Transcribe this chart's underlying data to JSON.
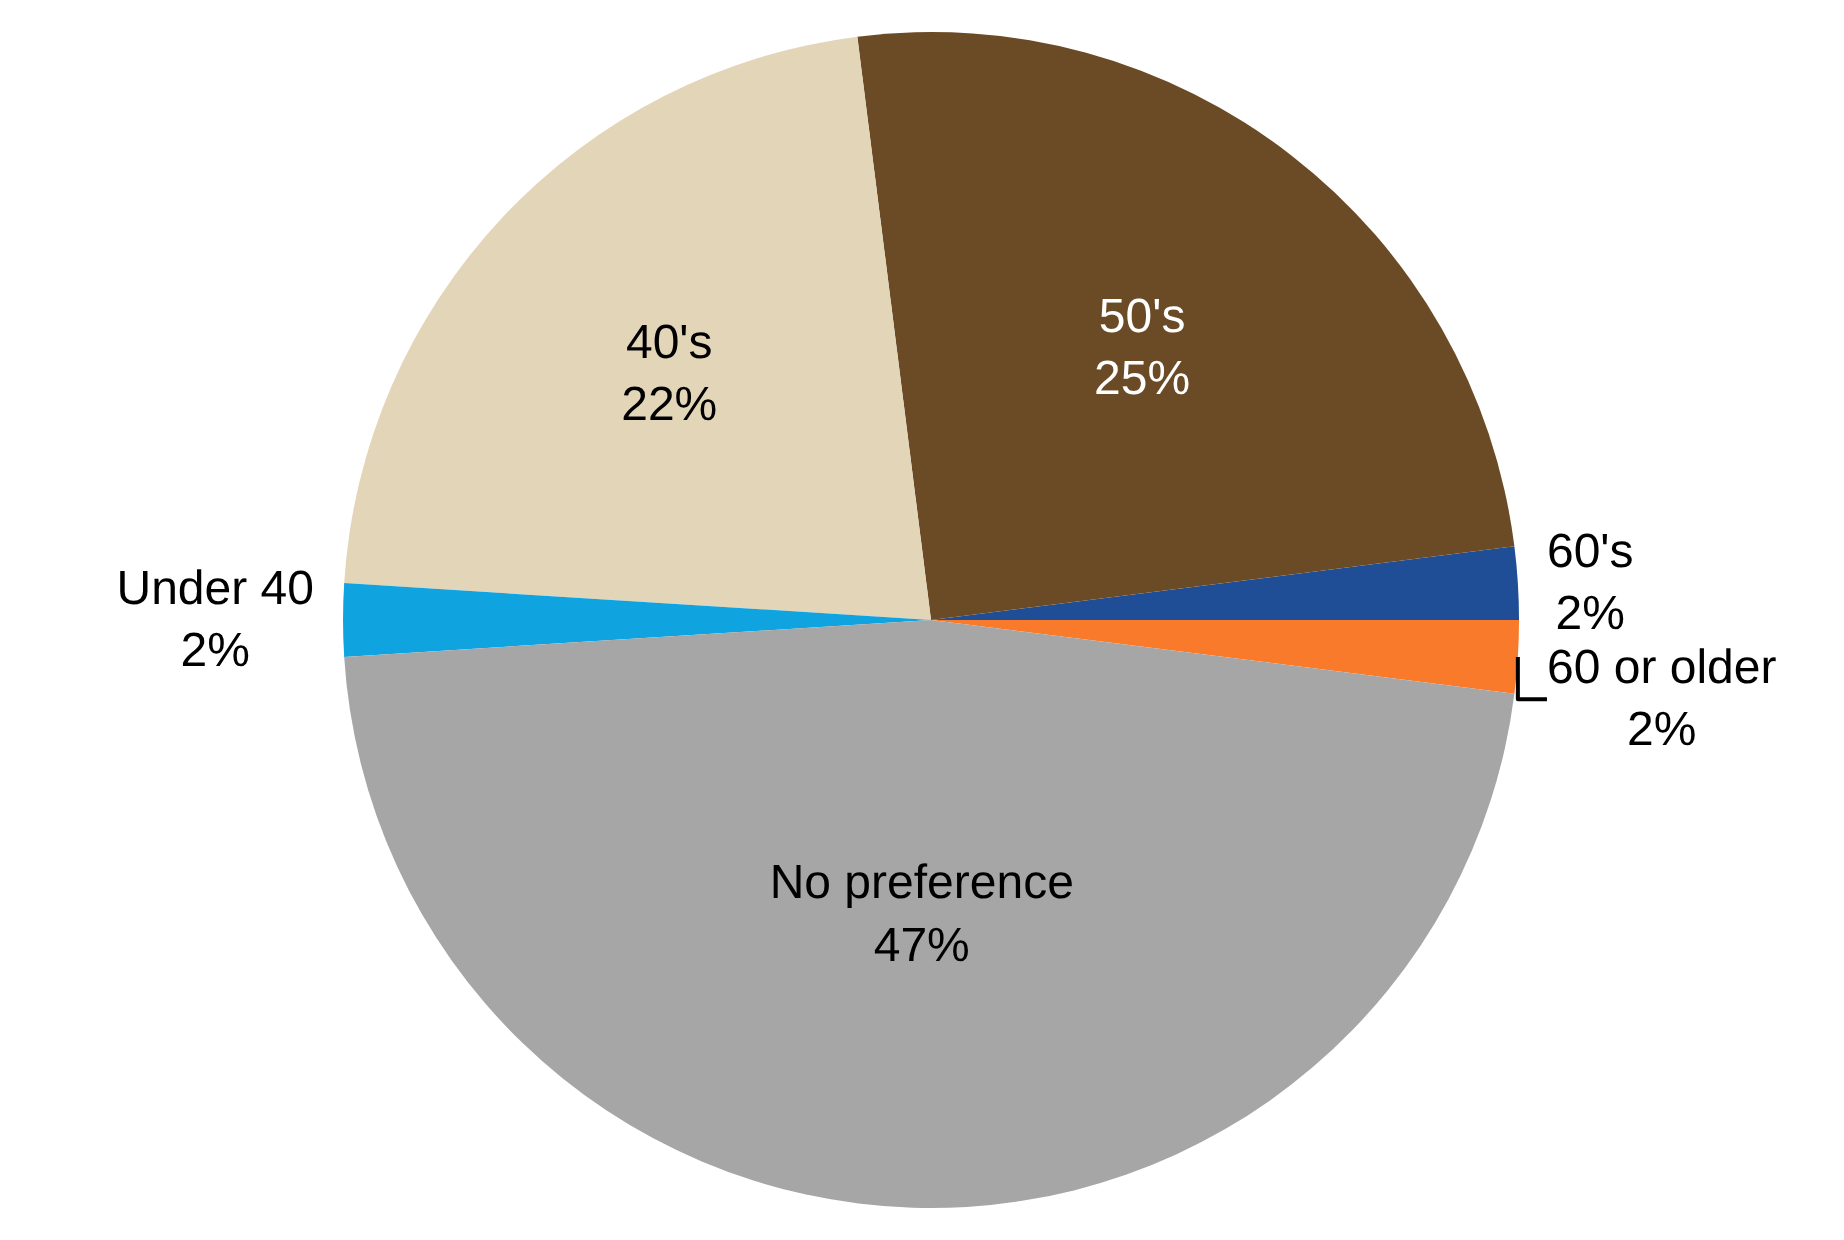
{
  "chart_data": {
    "type": "pie",
    "categories": [
      "60 or older",
      "60's",
      "50's",
      "40's",
      "Under 40",
      "No preference"
    ],
    "values": [
      2,
      2,
      25,
      22,
      2,
      47
    ],
    "value_labels": [
      "2%",
      "2%",
      "25%",
      "22%",
      "2%",
      "47%"
    ],
    "colors": [
      "#f97a2b",
      "#1f4e96",
      "#6b4a26",
      "#e3d5b8",
      "#0fa3e0",
      "#a6a6a6"
    ],
    "legend": false
  }
}
